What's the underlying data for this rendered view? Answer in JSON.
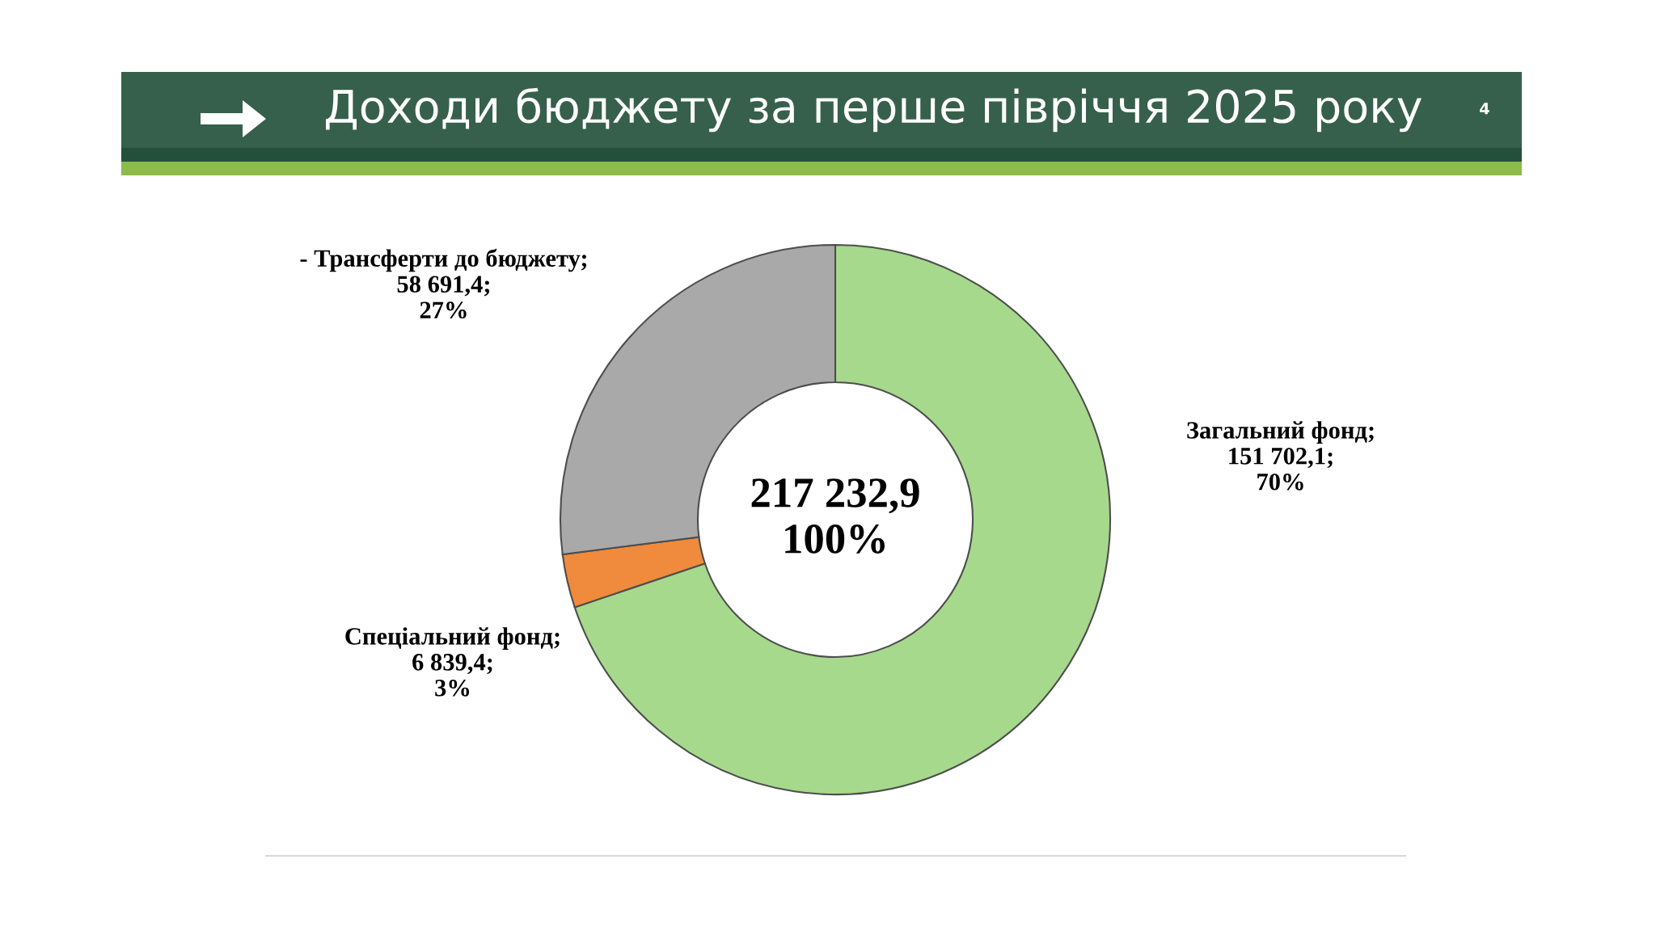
{
  "chart_data": {
    "type": "donut",
    "title": "Доходи бюджету за перше півріччя 2025 року",
    "categories": [
      "Загальний фонд",
      "Спеціальний фонд",
      "- Трансферти до бюджету"
    ],
    "values": [
      151702.1,
      6839.4,
      58691.4
    ],
    "value_labels": [
      ";\n151 702,1;\n70%",
      ";\n6 839,4;\n3%",
      ";\n58 691,4;\n27%"
    ],
    "colors": [
      "#a6d98c",
      "#f08a3c",
      "#a9a9a9"
    ],
    "annotations": [
      "217 232,9\n100%",
      "4"
    ]
  }
}
